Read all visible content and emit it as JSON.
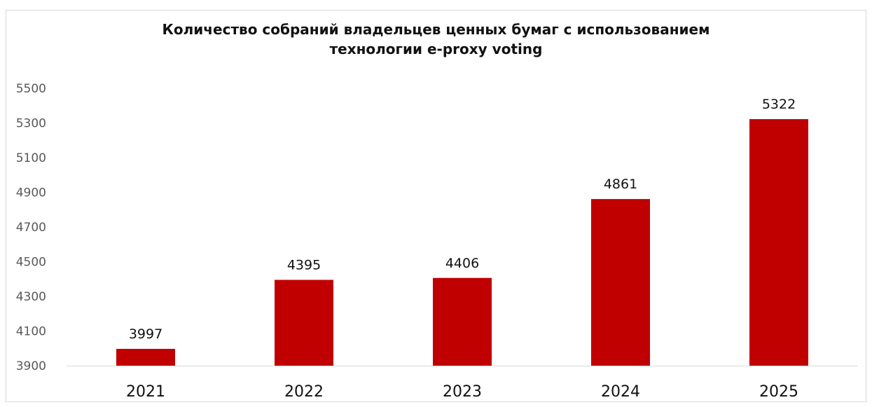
{
  "chart_data": {
    "type": "bar",
    "title_lines": [
      "Количество собраний владельцев ценных бумаг с использованием",
      "технологии e-proxy voting"
    ],
    "categories": [
      "2021",
      "2022",
      "2023",
      "2024",
      "2025"
    ],
    "values": [
      3997,
      4395,
      4406,
      4861,
      5322
    ],
    "data_labels": [
      "3997",
      "4395",
      "4406",
      "4861",
      "5322"
    ],
    "yticks": [
      "3900",
      "4100",
      "4300",
      "4500",
      "4700",
      "4900",
      "5100",
      "5300",
      "5500"
    ],
    "ylim": [
      3900,
      5500
    ],
    "grid": false,
    "legend": "none",
    "bar_color": "#c00000",
    "axis_color": "#d9d9d9"
  }
}
